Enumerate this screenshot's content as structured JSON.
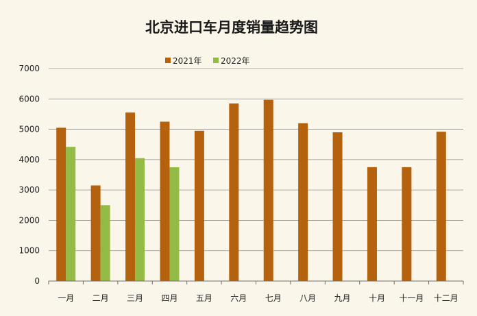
{
  "chart_data": {
    "type": "bar",
    "title": "北京进口车月度销量趋势图",
    "categories": [
      "一月",
      "二月",
      "三月",
      "四月",
      "五月",
      "六月",
      "七月",
      "八月",
      "九月",
      "十月",
      "十一月",
      "十二月"
    ],
    "series": [
      {
        "name": "2021年",
        "color": "#b5620f",
        "values": [
          5050,
          3150,
          5550,
          5250,
          4950,
          5850,
          5970,
          5200,
          4900,
          3750,
          3750,
          4920
        ]
      },
      {
        "name": "2022年",
        "color": "#93bb45",
        "values": [
          4420,
          2500,
          4050,
          3750,
          null,
          null,
          null,
          null,
          null,
          null,
          null,
          null
        ]
      }
    ],
    "ylim": [
      0,
      7000
    ],
    "yticks": [
      0,
      1000,
      2000,
      3000,
      4000,
      5000,
      6000,
      7000
    ],
    "grid": true,
    "legend_position": "top-center",
    "xlabel": "",
    "ylabel": ""
  }
}
